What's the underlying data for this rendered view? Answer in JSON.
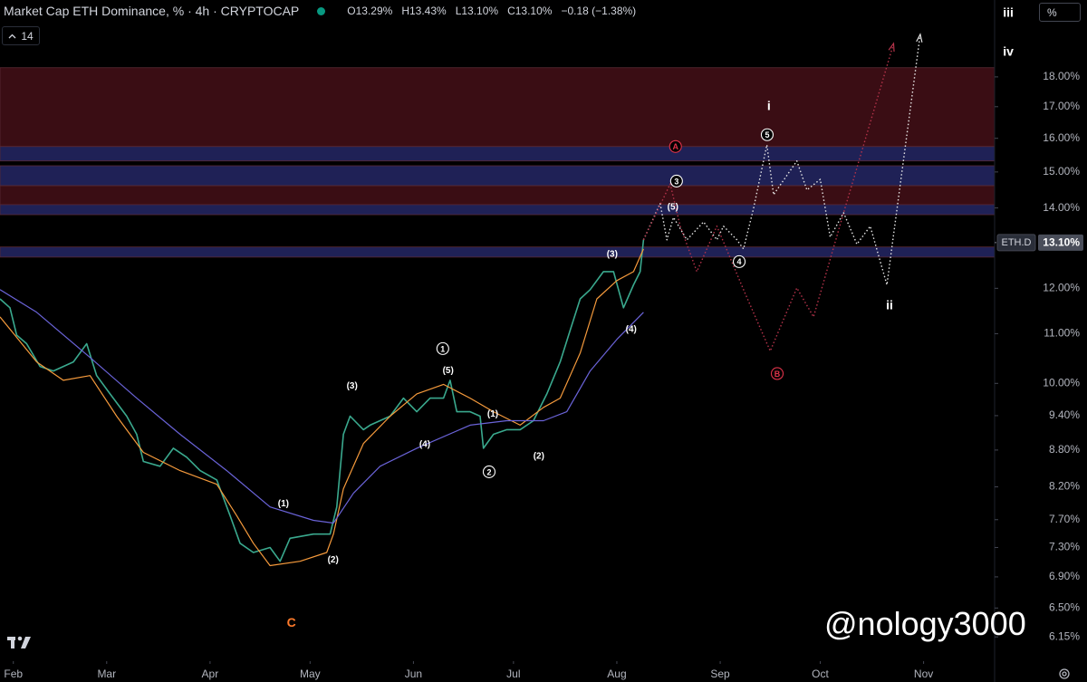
{
  "chart_data": {
    "type": "line",
    "title": "Market Cap ETH Dominance, % · 4h · CRYPTOCAP",
    "ohlc_labels": [
      "O13.29%",
      "H13.43%",
      "L13.10%",
      "C13.10%"
    ],
    "change_label": "−0.18 (−1.38%)",
    "interval_count": "14",
    "scale_button": "%",
    "symbol": "ETH.D",
    "last_price": {
      "value": 13.1,
      "label": "13.10%"
    },
    "watermark": "@nology3000",
    "log_scale": true,
    "grid": false,
    "xlim": [
      -4,
      294.3
    ],
    "ylim": [
      5.87,
      20.86
    ],
    "xticks": [
      {
        "value": 0,
        "label": "Feb"
      },
      {
        "value": 28,
        "label": "Mar"
      },
      {
        "value": 59,
        "label": "Apr"
      },
      {
        "value": 89,
        "label": "May"
      },
      {
        "value": 120,
        "label": "Jun"
      },
      {
        "value": 150,
        "label": "Jul"
      },
      {
        "value": 181,
        "label": "Aug"
      },
      {
        "value": 212,
        "label": "Sep"
      },
      {
        "value": 242,
        "label": "Oct"
      },
      {
        "value": 273,
        "label": "Nov"
      }
    ],
    "yticks": [
      {
        "value": 18,
        "label": "18.00%"
      },
      {
        "value": 17,
        "label": "17.00%"
      },
      {
        "value": 16,
        "label": "16.00%"
      },
      {
        "value": 15,
        "label": "15.00%"
      },
      {
        "value": 14,
        "label": "14.00%"
      },
      {
        "value": 12,
        "label": "12.00%"
      },
      {
        "value": 11,
        "label": "11.00%"
      },
      {
        "value": 10,
        "label": "10.00%"
      },
      {
        "value": 9.4,
        "label": "9.40%"
      },
      {
        "value": 8.8,
        "label": "8.80%"
      },
      {
        "value": 8.2,
        "label": "8.20%"
      },
      {
        "value": 7.7,
        "label": "7.70%"
      },
      {
        "value": 7.3,
        "label": "7.30%"
      },
      {
        "value": 6.9,
        "label": "6.90%"
      },
      {
        "value": 6.5,
        "label": "6.50%"
      },
      {
        "value": 6.15,
        "label": "6.15%"
      }
    ],
    "zones": [
      {
        "from": 15.75,
        "to": 18.32,
        "color": "#3a0d14"
      },
      {
        "from": 15.32,
        "to": 15.75,
        "color": "#1f2156"
      },
      {
        "from": 14.61,
        "to": 15.18,
        "color": "#1f2156"
      },
      {
        "from": 14.09,
        "to": 14.61,
        "color": "#3a0d14"
      },
      {
        "from": 13.82,
        "to": 14.09,
        "color": "#1f2156"
      },
      {
        "from": 12.74,
        "to": 12.99,
        "color": "#1f2156"
      }
    ],
    "series": [
      {
        "color": "#3aa98e",
        "style": "solid",
        "width": 1.6,
        "x": [
          -4,
          -1,
          1,
          4,
          8,
          12,
          18,
          22,
          25,
          29,
          34,
          37,
          39,
          44,
          48,
          52,
          56,
          61,
          65,
          68,
          72,
          77,
          80,
          83,
          90,
          95,
          97,
          99,
          101,
          105,
          107,
          113,
          117,
          121,
          125,
          129,
          131,
          133,
          137,
          140,
          141,
          144,
          148,
          152,
          156,
          160,
          164,
          167,
          170,
          173,
          177,
          180,
          183,
          186,
          188,
          189
        ],
        "values": [
          11.76,
          11.56,
          10.97,
          10.79,
          10.33,
          10.24,
          10.42,
          10.79,
          10.15,
          9.8,
          9.39,
          9.07,
          8.61,
          8.53,
          8.83,
          8.68,
          8.46,
          8.31,
          7.76,
          7.36,
          7.23,
          7.3,
          7.11,
          7.43,
          7.49,
          7.49,
          7.89,
          9.07,
          9.39,
          9.15,
          9.23,
          9.39,
          9.72,
          9.47,
          9.72,
          9.72,
          10.06,
          9.47,
          9.47,
          9.39,
          8.83,
          9.07,
          9.15,
          9.15,
          9.31,
          9.8,
          10.42,
          11.07,
          11.76,
          11.97,
          12.39,
          12.39,
          11.56,
          12.08,
          12.39,
          13.17
        ]
      },
      {
        "color": "#f59a3c",
        "style": "solid",
        "width": 1.2,
        "x": [
          -4,
          7,
          15,
          23,
          31,
          39,
          50,
          61,
          67,
          72,
          77,
          86,
          94,
          96,
          99,
          105,
          113,
          121,
          129,
          137,
          144,
          152,
          159,
          164,
          170,
          175,
          181,
          186,
          189
        ],
        "values": [
          11.36,
          10.42,
          10.06,
          10.15,
          9.39,
          8.76,
          8.46,
          8.24,
          7.76,
          7.36,
          7.05,
          7.11,
          7.23,
          7.49,
          8.17,
          8.91,
          9.39,
          9.8,
          9.98,
          9.72,
          9.47,
          9.23,
          9.55,
          9.72,
          10.6,
          11.76,
          12.18,
          12.39,
          12.94
        ]
      },
      {
        "color": "#6a63d8",
        "style": "solid",
        "width": 1.2,
        "x": [
          -4,
          7,
          23,
          37,
          50,
          64,
          77,
          90,
          96,
          102,
          110,
          121,
          137,
          148,
          159,
          166,
          173,
          181,
          189
        ],
        "values": [
          11.97,
          11.46,
          10.51,
          9.72,
          9.07,
          8.46,
          7.89,
          7.69,
          7.65,
          8.1,
          8.53,
          8.83,
          9.23,
          9.31,
          9.31,
          9.47,
          10.24,
          10.88,
          11.46
        ]
      },
      {
        "color": "#e6e6e6",
        "style": "dotted",
        "width": 1.4,
        "x": [
          189,
          194,
          196,
          198,
          202,
          207,
          211,
          213,
          217,
          219,
          222,
          226,
          228,
          235,
          238,
          242,
          245,
          249,
          253,
          257,
          262,
          272
        ],
        "values": [
          13.17,
          14.12,
          13.17,
          13.75,
          13.17,
          13.63,
          13.17,
          13.52,
          13.17,
          12.94,
          13.99,
          15.8,
          14.36,
          15.32,
          14.49,
          14.79,
          13.24,
          13.87,
          13.06,
          13.52,
          12.08,
          19.53
        ]
      },
      {
        "color": "#b5334a",
        "style": "dotted",
        "width": 1.4,
        "x": [
          189,
          197,
          200,
          205,
          211,
          219,
          227,
          235,
          240,
          249,
          264
        ],
        "values": [
          13.17,
          14.66,
          13.52,
          12.39,
          13.52,
          11.97,
          10.64,
          12.01,
          11.36,
          13.87,
          19.19
        ]
      }
    ],
    "annotations": [
      {
        "text": "(1)",
        "x": 81,
        "y": 7.95,
        "color": "#ffffff",
        "circled": false
      },
      {
        "text": "(2)",
        "x": 95.9,
        "y": 7.14,
        "color": "#ffffff",
        "circled": false
      },
      {
        "text": "(3)",
        "x": 101.6,
        "y": 9.96,
        "color": "#ffffff",
        "circled": false
      },
      {
        "text": "(4)",
        "x": 123.4,
        "y": 8.91,
        "color": "#ffffff",
        "circled": false
      },
      {
        "text": "(5)",
        "x": 130.4,
        "y": 10.26,
        "color": "#ffffff",
        "circled": false
      },
      {
        "text": "1",
        "x": 128.8,
        "y": 10.69,
        "color": "#ffffff",
        "circled": true
      },
      {
        "text": "(1)",
        "x": 143.8,
        "y": 9.44,
        "color": "#ffffff",
        "circled": false
      },
      {
        "text": "2",
        "x": 142.7,
        "y": 8.44,
        "color": "#ffffff",
        "circled": true
      },
      {
        "text": "(2)",
        "x": 157.6,
        "y": 8.71,
        "color": "#ffffff",
        "circled": false
      },
      {
        "text": "(3)",
        "x": 179.6,
        "y": 12.83,
        "color": "#ffffff",
        "circled": false
      },
      {
        "text": "(4)",
        "x": 185.3,
        "y": 11.11,
        "color": "#ffffff",
        "circled": false
      },
      {
        "text": "(5)",
        "x": 197.8,
        "y": 14.04,
        "color": "#ffffff",
        "circled": false
      },
      {
        "text": "3",
        "x": 198.9,
        "y": 14.74,
        "color": "#ffffff",
        "circled": true
      },
      {
        "text": "A",
        "x": 198.6,
        "y": 15.75,
        "color": "#e0334a",
        "circled": true
      },
      {
        "text": "4",
        "x": 217.7,
        "y": 12.63,
        "color": "#ffffff",
        "circled": true
      },
      {
        "text": "5",
        "x": 226.1,
        "y": 16.11,
        "color": "#ffffff",
        "circled": true
      },
      {
        "text": "i",
        "x": 226.6,
        "y": 17.03,
        "color": "#ffffff",
        "circled": false
      },
      {
        "text": "ii",
        "x": 262.8,
        "y": 11.62,
        "color": "#ffffff",
        "circled": false
      },
      {
        "text": "iii",
        "x": 298.4,
        "y": 20.36,
        "color": "#ffffff",
        "circled": false
      },
      {
        "text": "iv",
        "x": 298.4,
        "y": 18.9,
        "color": "#ffffff",
        "circled": false
      },
      {
        "text": "B",
        "x": 229.1,
        "y": 10.19,
        "color": "#e0334a",
        "circled": true
      },
      {
        "text": "C",
        "x": 83.4,
        "y": 6.32,
        "color": "#ff7a2a",
        "circled": false
      }
    ]
  }
}
